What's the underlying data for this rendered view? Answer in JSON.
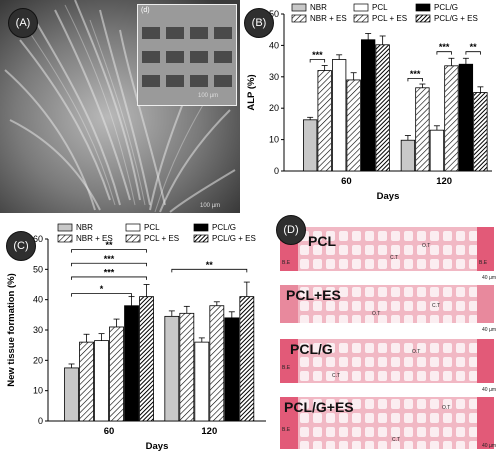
{
  "panels": {
    "a": {
      "label": "(A)",
      "inset_label": "(d)",
      "scale_main": "100 µm",
      "scale_inset": "100 µm"
    },
    "b": {
      "label": "(B)"
    },
    "c": {
      "label": "(C)"
    },
    "d": {
      "label": "(D)"
    }
  },
  "histology": {
    "rows": [
      {
        "name": "PCL"
      },
      {
        "name": "PCL+ES"
      },
      {
        "name": "PCL/G"
      },
      {
        "name": "PCL/G+ES"
      }
    ],
    "tags": {
      "be": "B.E",
      "ct": "C.T",
      "ot": "O.T",
      "s": "S",
      "scale": "40 µm"
    }
  },
  "chart_data": [
    {
      "type": "bar",
      "id": "alp",
      "categories": [
        "60",
        "120"
      ],
      "xlabel": "Days",
      "ylabel": "ALP (%)",
      "ylim": [
        0,
        50
      ],
      "yticks": [
        0,
        10,
        20,
        30,
        40,
        50
      ],
      "series": [
        {
          "name": "NBR",
          "values": [
            16.3,
            9.8
          ],
          "errors": [
            0.8,
            1.5
          ],
          "pattern": "gray"
        },
        {
          "name": "NBR + ES",
          "values": [
            32.0,
            26.5
          ],
          "errors": [
            1.6,
            1.2
          ],
          "pattern": "hatch"
        },
        {
          "name": "PCL",
          "values": [
            35.5,
            13.0
          ],
          "errors": [
            1.5,
            1.4
          ],
          "pattern": "white"
        },
        {
          "name": "PCL + ES",
          "values": [
            29.0,
            33.5
          ],
          "errors": [
            2.3,
            2.4
          ],
          "pattern": "hatch"
        },
        {
          "name": "PCL/G",
          "values": [
            41.8,
            34.0
          ],
          "errors": [
            2.0,
            1.9
          ],
          "pattern": "black"
        },
        {
          "name": "PCL/G + ES",
          "values": [
            40.2,
            25.0
          ],
          "errors": [
            2.8,
            1.8
          ],
          "pattern": "densehatch"
        }
      ],
      "significance": [
        {
          "label": "***",
          "group": 0,
          "from": 0,
          "to": 1,
          "y": 35.5
        },
        {
          "label": "***",
          "group": 1,
          "from": 0,
          "to": 1,
          "y": 29.5
        },
        {
          "label": "***",
          "group": 1,
          "from": 2,
          "to": 3,
          "y": 38.0
        },
        {
          "label": "**",
          "group": 1,
          "from": 4,
          "to": 5,
          "y": 38.0
        }
      ]
    },
    {
      "type": "bar",
      "id": "tissue",
      "categories": [
        "60",
        "120"
      ],
      "xlabel": "Days",
      "ylabel": "New tissue formation (%)",
      "ylim": [
        0,
        60
      ],
      "yticks": [
        0,
        10,
        20,
        30,
        40,
        50,
        60
      ],
      "series": [
        {
          "name": "NBR",
          "values": [
            17.5,
            34.5
          ],
          "errors": [
            1.3,
            1.8
          ],
          "pattern": "gray"
        },
        {
          "name": "NBR + ES",
          "values": [
            26.0,
            35.5
          ],
          "errors": [
            2.6,
            2.3
          ],
          "pattern": "hatch"
        },
        {
          "name": "PCL",
          "values": [
            26.5,
            26.0
          ],
          "errors": [
            2.3,
            1.4
          ],
          "pattern": "white"
        },
        {
          "name": "PCL + ES",
          "values": [
            31.0,
            38.0
          ],
          "errors": [
            2.6,
            1.3
          ],
          "pattern": "hatch"
        },
        {
          "name": "PCL/G",
          "values": [
            38.0,
            34.0
          ],
          "errors": [
            3.0,
            2.0
          ],
          "pattern": "black"
        },
        {
          "name": "PCL/G + ES",
          "values": [
            41.0,
            41.0
          ],
          "errors": [
            4.0,
            4.8
          ],
          "pattern": "densehatch"
        }
      ],
      "significance": [
        {
          "label": "*",
          "group": 0,
          "from": 0,
          "to": 4,
          "y": 42.0
        },
        {
          "label": "***",
          "group": 0,
          "from": 0,
          "to": 5,
          "y": 47.5
        },
        {
          "label": "***",
          "group": 0,
          "from": 0,
          "to": 5,
          "y": 52.0
        },
        {
          "label": "**",
          "group": 0,
          "from": 0,
          "to": 5,
          "y": 56.5
        },
        {
          "label": "**",
          "group": 1,
          "from": 0,
          "to": 5,
          "y": 50.0
        }
      ]
    }
  ]
}
